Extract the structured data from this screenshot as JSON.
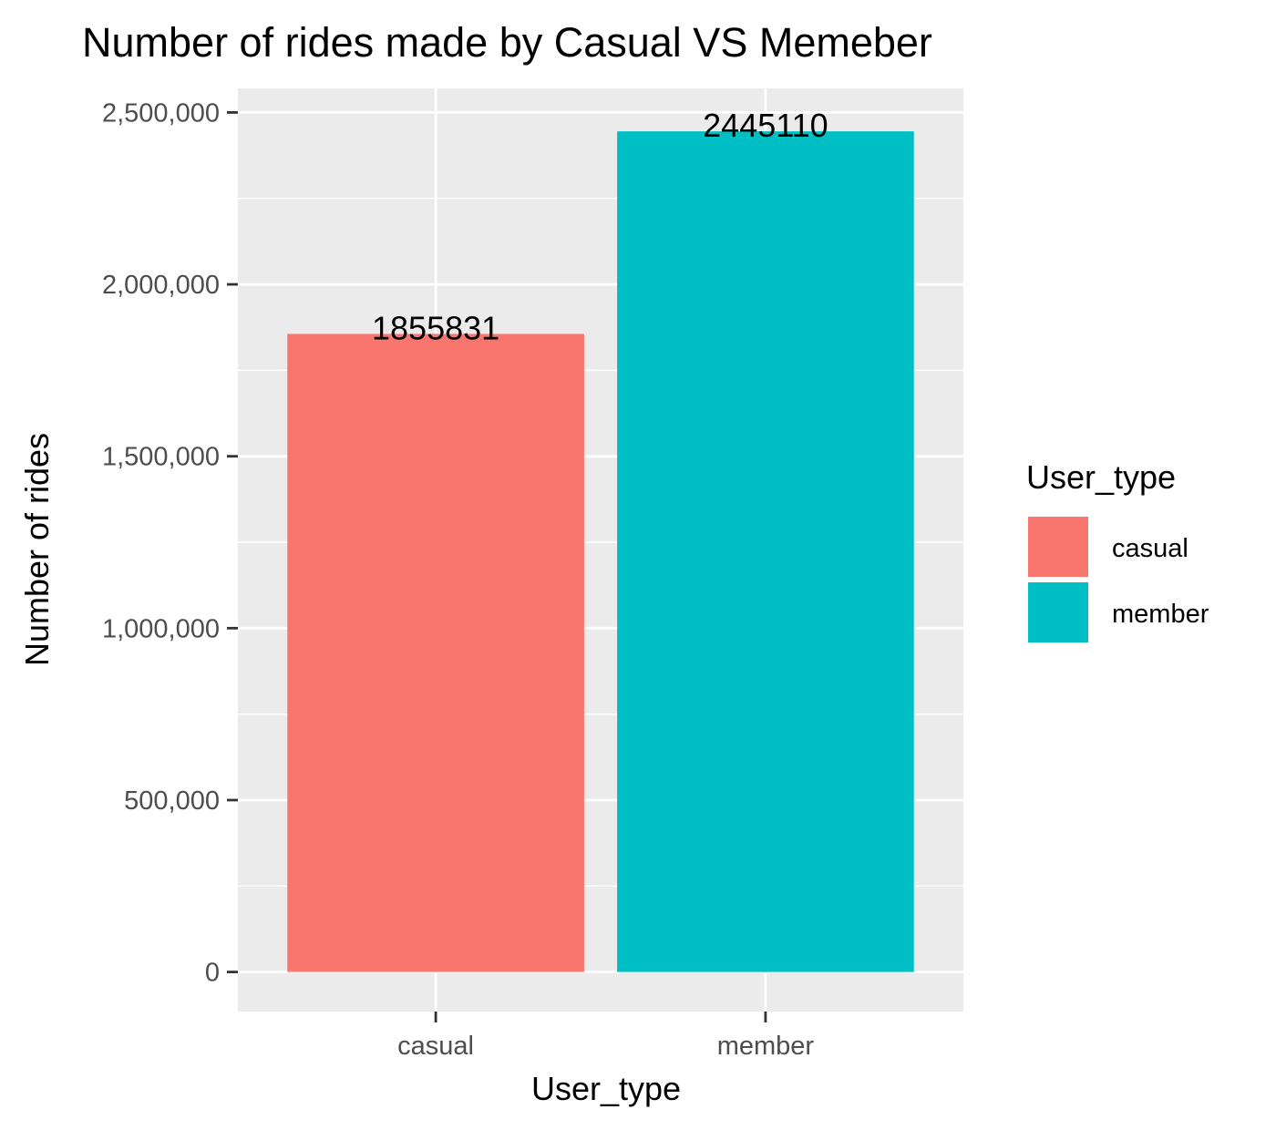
{
  "chart_data": {
    "type": "bar",
    "title": "Number of rides made by Casual VS Memeber",
    "xlabel": "User_type",
    "ylabel": "Number of rides",
    "categories": [
      "casual",
      "member"
    ],
    "values": [
      1855831,
      2445110
    ],
    "data_labels": [
      "1855831",
      "2445110"
    ],
    "ylim": [
      -115000,
      2570000
    ],
    "y_ticks": [
      0,
      500000,
      1000000,
      1500000,
      2000000,
      2500000
    ],
    "y_tick_labels": [
      "0",
      "500,000",
      "1,000,000",
      "1,500,000",
      "2,000,000",
      "2,500,000"
    ],
    "colors": [
      "#F8766D",
      "#00BFC4"
    ],
    "panel_background": "#EBEBEB",
    "grid": true,
    "legend": {
      "title": "User_type",
      "placement": "right",
      "items": [
        {
          "label": "casual",
          "color": "#F8766D"
        },
        {
          "label": "member",
          "color": "#00BFC4"
        }
      ]
    }
  }
}
